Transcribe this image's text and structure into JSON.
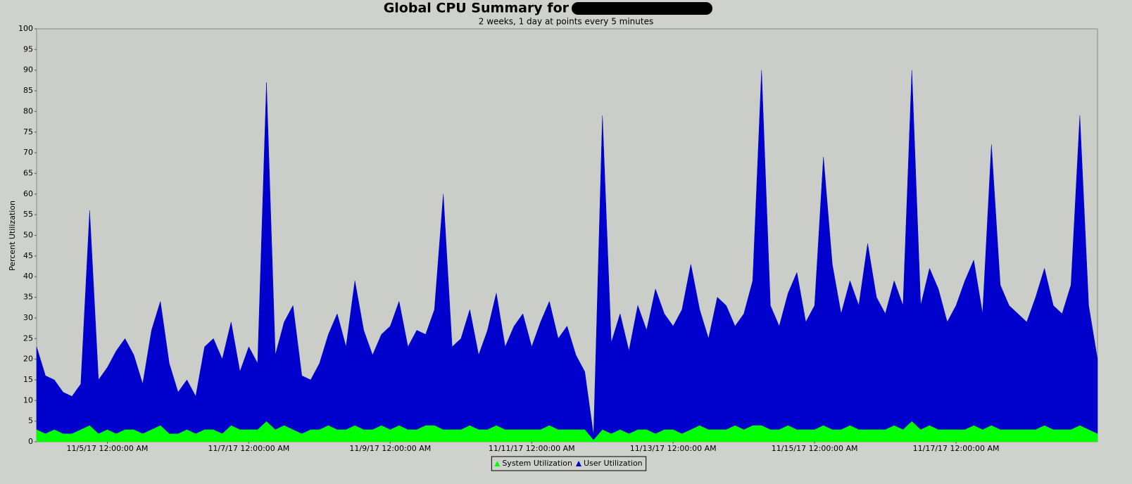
{
  "chart_data": {
    "type": "stacked-area",
    "title": "Global CPU Summary for",
    "subtitle": "2 weeks, 1 day at points every 5 minutes",
    "ylabel": "Percent Utilization",
    "ylim": [
      0,
      100
    ],
    "yticks": [
      0,
      5,
      10,
      15,
      20,
      25,
      30,
      35,
      40,
      45,
      50,
      55,
      60,
      65,
      70,
      75,
      80,
      85,
      90,
      95,
      100
    ],
    "xlim": [
      "11/4/17 12:00:00 AM",
      "11/19/17 12:00:00 AM"
    ],
    "xticks": [
      "11/5/17 12:00:00 AM",
      "11/7/17 12:00:00 AM",
      "11/9/17 12:00:00 AM",
      "11/11/17 12:00:00 AM",
      "11/13/17 12:00:00 AM",
      "11/15/17 12:00:00 AM",
      "11/17/17 12:00:00 AM"
    ],
    "legend": "bottom",
    "x": [
      "11/4/17 12:00:00 AM",
      "11/4/17 3:00:00 AM",
      "11/4/17 6:00:00 AM",
      "11/4/17 9:00:00 AM",
      "11/4/17 12:00:00 PM",
      "11/4/17 3:00:00 PM",
      "11/4/17 6:00:00 PM",
      "11/4/17 9:00:00 PM",
      "11/5/17 12:00:00 AM",
      "11/5/17 3:00:00 AM",
      "11/5/17 6:00:00 AM",
      "11/5/17 9:00:00 AM",
      "11/5/17 12:00:00 PM",
      "11/5/17 3:00:00 PM",
      "11/5/17 6:00:00 PM",
      "11/5/17 9:00:00 PM",
      "11/6/17 12:00:00 AM",
      "11/6/17 3:00:00 AM",
      "11/6/17 6:00:00 AM",
      "11/6/17 9:00:00 AM",
      "11/6/17 12:00:00 PM",
      "11/6/17 3:00:00 PM",
      "11/6/17 6:00:00 PM",
      "11/6/17 9:00:00 PM",
      "11/7/17 12:00:00 AM",
      "11/7/17 3:00:00 AM",
      "11/7/17 6:00:00 AM",
      "11/7/17 9:00:00 AM",
      "11/7/17 12:00:00 PM",
      "11/7/17 3:00:00 PM",
      "11/7/17 6:00:00 PM",
      "11/7/17 9:00:00 PM",
      "11/8/17 12:00:00 AM",
      "11/8/17 3:00:00 AM",
      "11/8/17 6:00:00 AM",
      "11/8/17 9:00:00 AM",
      "11/8/17 12:00:00 PM",
      "11/8/17 3:00:00 PM",
      "11/8/17 6:00:00 PM",
      "11/8/17 9:00:00 PM",
      "11/9/17 12:00:00 AM",
      "11/9/17 3:00:00 AM",
      "11/9/17 6:00:00 AM",
      "11/9/17 9:00:00 AM",
      "11/9/17 12:00:00 PM",
      "11/9/17 3:00:00 PM",
      "11/9/17 6:00:00 PM",
      "11/9/17 9:00:00 PM",
      "11/10/17 12:00:00 AM",
      "11/10/17 3:00:00 AM",
      "11/10/17 6:00:00 AM",
      "11/10/17 9:00:00 AM",
      "11/10/17 12:00:00 PM",
      "11/10/17 3:00:00 PM",
      "11/10/17 6:00:00 PM",
      "11/10/17 9:00:00 PM",
      "11/11/17 12:00:00 AM",
      "11/11/17 3:00:00 AM",
      "11/11/17 6:00:00 AM",
      "11/11/17 9:00:00 AM",
      "11/11/17 12:00:00 PM",
      "11/11/17 3:00:00 PM",
      "11/11/17 6:00:00 PM",
      "11/11/17 9:00:00 PM",
      "11/12/17 12:00:00 AM",
      "11/12/17 3:00:00 AM",
      "11/12/17 6:00:00 AM",
      "11/12/17 9:00:00 AM",
      "11/12/17 12:00:00 PM",
      "11/12/17 3:00:00 PM",
      "11/12/17 6:00:00 PM",
      "11/12/17 9:00:00 PM",
      "11/13/17 12:00:00 AM",
      "11/13/17 3:00:00 AM",
      "11/13/17 6:00:00 AM",
      "11/13/17 9:00:00 AM",
      "11/13/17 12:00:00 PM",
      "11/13/17 3:00:00 PM",
      "11/13/17 6:00:00 PM",
      "11/13/17 9:00:00 PM",
      "11/14/17 12:00:00 AM",
      "11/14/17 3:00:00 AM",
      "11/14/17 6:00:00 AM",
      "11/14/17 9:00:00 AM",
      "11/14/17 12:00:00 PM",
      "11/14/17 3:00:00 PM",
      "11/14/17 6:00:00 PM",
      "11/14/17 9:00:00 PM",
      "11/15/17 12:00:00 AM",
      "11/15/17 3:00:00 AM",
      "11/15/17 6:00:00 AM",
      "11/15/17 9:00:00 AM",
      "11/15/17 12:00:00 PM",
      "11/15/17 3:00:00 PM",
      "11/15/17 6:00:00 PM",
      "11/15/17 9:00:00 PM",
      "11/16/17 12:00:00 AM",
      "11/16/17 3:00:00 AM",
      "11/16/17 6:00:00 AM",
      "11/16/17 9:00:00 AM",
      "11/16/17 12:00:00 PM",
      "11/16/17 3:00:00 PM",
      "11/16/17 6:00:00 PM",
      "11/16/17 9:00:00 PM",
      "11/17/17 12:00:00 AM",
      "11/17/17 3:00:00 AM",
      "11/17/17 6:00:00 AM",
      "11/17/17 9:00:00 AM",
      "11/17/17 12:00:00 PM",
      "11/17/17 3:00:00 PM",
      "11/17/17 6:00:00 PM",
      "11/17/17 9:00:00 PM",
      "11/18/17 12:00:00 AM",
      "11/18/17 3:00:00 AM",
      "11/18/17 6:00:00 AM",
      "11/18/17 9:00:00 AM",
      "11/18/17 12:00:00 PM",
      "11/18/17 3:00:00 PM",
      "11/18/17 6:00:00 PM",
      "11/18/17 9:00:00 PM",
      "11/19/17 12:00:00 AM"
    ],
    "series": [
      {
        "name": "System Utilization",
        "color": "#00ff00",
        "values": [
          3,
          2,
          3,
          2,
          2,
          3,
          4,
          2,
          3,
          2,
          3,
          3,
          2,
          3,
          4,
          2,
          2,
          3,
          2,
          3,
          3,
          2,
          4,
          3,
          3,
          3,
          5,
          3,
          4,
          3,
          2,
          3,
          3,
          4,
          3,
          3,
          4,
          3,
          3,
          4,
          3,
          4,
          3,
          3,
          4,
          4,
          3,
          3,
          3,
          4,
          3,
          3,
          4,
          3,
          3,
          3,
          3,
          3,
          4,
          3,
          3,
          3,
          3,
          0.5,
          3,
          2,
          3,
          2,
          3,
          3,
          2,
          3,
          3,
          2,
          3,
          4,
          3,
          3,
          3,
          4,
          3,
          4,
          4,
          3,
          3,
          4,
          3,
          3,
          3,
          4,
          3,
          3,
          4,
          3,
          3,
          3,
          3,
          4,
          3,
          5,
          3,
          4,
          3,
          3,
          3,
          3,
          4,
          3,
          4,
          3,
          3,
          3,
          3,
          3,
          4,
          3,
          3,
          3,
          4,
          3,
          2
        ]
      },
      {
        "name": "User Utilization",
        "color": "#0000cc",
        "values": [
          20,
          14,
          12,
          10,
          9,
          11,
          52,
          13,
          15,
          20,
          22,
          18,
          12,
          24,
          30,
          17,
          10,
          12,
          9,
          20,
          22,
          18,
          25,
          14,
          20,
          16,
          82,
          18,
          25,
          30,
          14,
          12,
          16,
          22,
          28,
          20,
          35,
          24,
          18,
          22,
          25,
          30,
          20,
          24,
          22,
          28,
          57,
          20,
          22,
          28,
          18,
          24,
          32,
          20,
          25,
          28,
          20,
          26,
          30,
          22,
          25,
          18,
          14,
          1,
          76,
          22,
          28,
          20,
          30,
          24,
          35,
          28,
          25,
          30,
          40,
          28,
          22,
          32,
          30,
          24,
          28,
          35,
          86,
          30,
          25,
          32,
          38,
          26,
          30,
          65,
          40,
          28,
          35,
          30,
          45,
          32,
          28,
          35,
          30,
          85,
          30,
          38,
          34,
          26,
          30,
          36,
          40,
          28,
          68,
          35,
          30,
          28,
          26,
          32,
          38,
          30,
          28,
          35,
          75,
          30,
          18
        ]
      }
    ]
  }
}
